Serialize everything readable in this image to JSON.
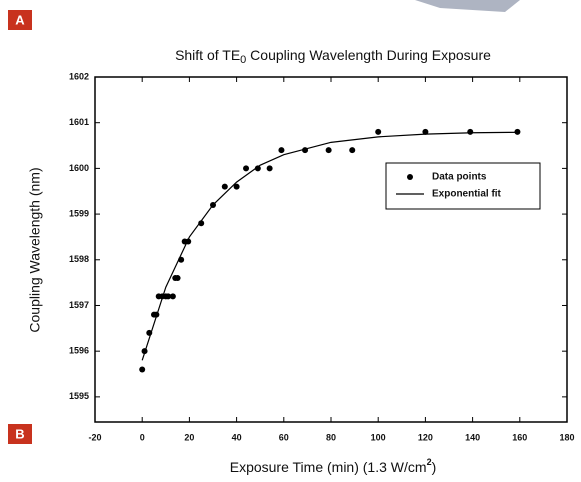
{
  "panel_labels": [
    "A",
    "B"
  ],
  "chart_data": {
    "type": "scatter",
    "title": [
      "Shift of TE",
      "0",
      " Coupling Wavelength During Exposure"
    ],
    "x_label": [
      "Exposure Time (min) (1.3 W/cm",
      "2",
      ")"
    ],
    "y_label": "Coupling Wavelength (nm)",
    "xlim": [
      -20,
      180
    ],
    "xticks": [
      -20,
      0,
      20,
      40,
      60,
      80,
      100,
      120,
      140,
      160,
      180
    ],
    "ylim": [
      1594.45,
      1602
    ],
    "yticks": [
      1595,
      1596,
      1597,
      1598,
      1599,
      1600,
      1601,
      1602
    ],
    "legend": "upper right",
    "series": [
      {
        "name": "Data points",
        "mode": "markers",
        "color": "#000000",
        "x": [
          0,
          1,
          3,
          5,
          6,
          7,
          8.5,
          10,
          11,
          13,
          14,
          15,
          16.5,
          18,
          19.5,
          25,
          30,
          35,
          40,
          44,
          49,
          54,
          59,
          69,
          79,
          89,
          100,
          120,
          139,
          159
        ],
        "values": [
          1595.6,
          1596.0,
          1596.4,
          1596.8,
          1596.8,
          1597.2,
          1597.2,
          1597.2,
          1597.2,
          1597.2,
          1597.6,
          1597.6,
          1598.0,
          1598.4,
          1598.4,
          1598.8,
          1599.2,
          1599.6,
          1599.6,
          1600.0,
          1600.0,
          1600.0,
          1600.4,
          1600.4,
          1600.4,
          1600.4,
          1600.8,
          1600.8,
          1600.8,
          1600.8
        ]
      },
      {
        "name": "Exponential fit",
        "mode": "line",
        "color": "#000000",
        "x": [
          0,
          10,
          20,
          30,
          40,
          50,
          60,
          80,
          100,
          120,
          140,
          160
        ],
        "values": [
          1595.8,
          1597.4,
          1598.5,
          1599.2,
          1599.7,
          1600.07,
          1600.3,
          1600.57,
          1600.69,
          1600.75,
          1600.78,
          1600.79
        ]
      }
    ]
  }
}
